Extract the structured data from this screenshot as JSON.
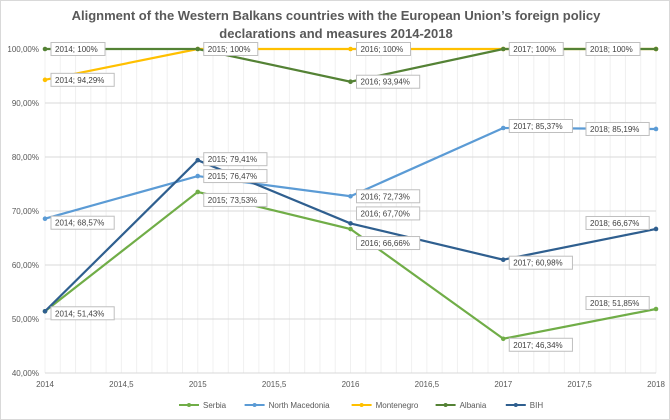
{
  "chart_data": {
    "type": "line",
    "title_lines": [
      "Alignment of the Western Balkans countries with the European Union’s foreign policy",
      "declarations and measures 2014-2018"
    ],
    "xlabel": "",
    "ylabel": "",
    "xlim": [
      2014,
      2018
    ],
    "ylim": [
      40,
      100
    ],
    "x_ticks": [
      "2014",
      "2014,5",
      "2015",
      "2015,5",
      "2016",
      "2016,5",
      "2017",
      "2017,5",
      "2018"
    ],
    "y_ticks": [
      "40,00%",
      "50,00%",
      "60,00%",
      "70,00%",
      "80,00%",
      "90,00%",
      "100,00%"
    ],
    "grid": true,
    "legend_position": "bottom",
    "x": [
      2014,
      2015,
      2016,
      2017,
      2018
    ],
    "series": [
      {
        "name": "Serbia",
        "color": "#70ad47",
        "values": [
          51.43,
          73.53,
          66.66,
          46.34,
          51.85
        ],
        "labels": [
          null,
          "2015; 73,53%",
          "2016; 66,66%",
          "2017; 46,34%",
          "2018; 51,85%"
        ]
      },
      {
        "name": "North Macedonia",
        "color": "#5b9bd5",
        "values": [
          68.57,
          76.47,
          72.73,
          85.37,
          85.19
        ],
        "labels": [
          "2014; 68,57%",
          "2015; 76,47%",
          "2016; 72,73%",
          "2017; 85,37%",
          "2018; 85,19%"
        ]
      },
      {
        "name": "Montenegro",
        "color": "#ffc000",
        "values": [
          94.29,
          100,
          100,
          100,
          100
        ],
        "labels": [
          "2014; 94,29%",
          null,
          "2016; 100%",
          null,
          null
        ]
      },
      {
        "name": "Albania",
        "color": "#548235",
        "values": [
          100,
          100,
          93.94,
          100,
          100
        ],
        "labels": [
          "2014; 100%",
          "2015; 100%",
          "2016; 93,94%",
          "2017; 100%",
          "2018; 100%"
        ]
      },
      {
        "name": "BIH",
        "color": "#2f5f8f",
        "values": [
          51.43,
          79.41,
          67.7,
          60.98,
          66.67
        ],
        "labels": [
          "2014; 51,43%",
          "2015; 79,41%",
          "2016; 67,70%",
          "2017; 60,98%",
          "2018; 66,67%"
        ]
      }
    ]
  }
}
